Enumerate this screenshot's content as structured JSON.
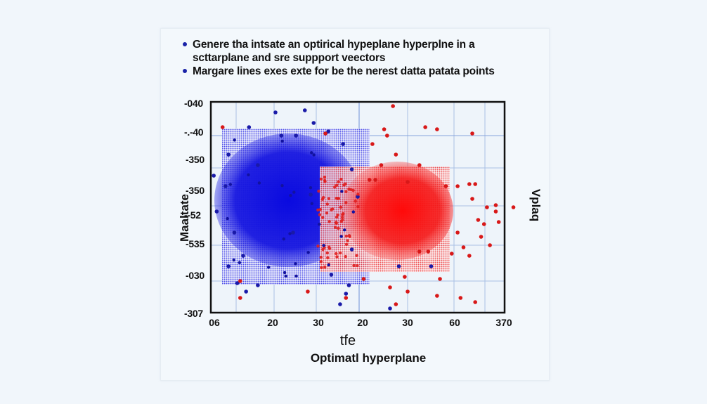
{
  "bullets": [
    "Genere tha intsate an optirical hypeplane hyperplne in a scttarplane and sre suppport veectors",
    "Margare lines  exes exte for be the nerest datta patata points"
  ],
  "colors": {
    "background": "#f1f6fb",
    "plot_bg": "#eef4fa",
    "class_a": "#1414d8",
    "class_b": "#e81414",
    "grid": "#9fb8e0",
    "frame": "#111111"
  },
  "chart_data": {
    "type": "scatter",
    "title": "Optimatl hyperplane",
    "xlabel": "tfe",
    "ylabel": "Maaltate",
    "right_label": "Vplaq",
    "x_ticks": [
      "06",
      "20",
      "30",
      "20",
      "30",
      "60",
      "370"
    ],
    "y_ticks": [
      "-040",
      "-.-40",
      "-350",
      "-350",
      "--52",
      "-535",
      "-030",
      "-307"
    ],
    "grid": true,
    "legend": null,
    "series": [
      {
        "name": "class_a (blue)",
        "color": "#1414d8",
        "density_region": {
          "x0": 0.04,
          "x1": 0.52,
          "y0": 0.13,
          "y1": 0.87
        },
        "points": [
          [
            0.22,
            0.05
          ],
          [
            0.29,
            0.16
          ],
          [
            0.32,
            0.04
          ],
          [
            0.35,
            0.1
          ],
          [
            0.01,
            0.35
          ],
          [
            0.02,
            0.52
          ],
          [
            0.05,
            0.4
          ],
          [
            0.06,
            0.25
          ],
          [
            0.08,
            0.62
          ],
          [
            0.11,
            0.73
          ],
          [
            0.13,
            0.12
          ],
          [
            0.16,
            0.3
          ],
          [
            0.24,
            0.16
          ],
          [
            0.28,
            0.62
          ],
          [
            0.34,
            0.44
          ],
          [
            0.4,
            0.14
          ],
          [
            0.45,
            0.2
          ],
          [
            0.48,
            0.32
          ],
          [
            0.5,
            0.45
          ],
          [
            0.48,
            0.7
          ],
          [
            0.41,
            0.82
          ],
          [
            0.47,
            0.87
          ],
          [
            0.46,
            0.91
          ],
          [
            0.06,
            0.78
          ],
          [
            0.09,
            0.86
          ],
          [
            0.16,
            0.87
          ],
          [
            0.44,
            0.96
          ],
          [
            0.12,
            0.9
          ],
          [
            0.75,
            0.78
          ],
          [
            0.64,
            0.78
          ],
          [
            0.61,
            0.98
          ]
        ]
      },
      {
        "name": "class_b (red)",
        "color": "#e81414",
        "density_region": {
          "x0": 0.4,
          "x1": 0.82,
          "y0": 0.28,
          "y1": 0.78
        },
        "points": [
          [
            0.04,
            0.12
          ],
          [
            0.39,
            0.15
          ],
          [
            0.62,
            0.02
          ],
          [
            0.59,
            0.13
          ],
          [
            0.6,
            0.16
          ],
          [
            0.73,
            0.12
          ],
          [
            0.77,
            0.13
          ],
          [
            0.89,
            0.15
          ],
          [
            0.55,
            0.2
          ],
          [
            0.63,
            0.25
          ],
          [
            0.58,
            0.3
          ],
          [
            0.71,
            0.3
          ],
          [
            0.54,
            0.37
          ],
          [
            0.56,
            0.37
          ],
          [
            0.67,
            0.38
          ],
          [
            0.88,
            0.39
          ],
          [
            0.9,
            0.39
          ],
          [
            0.8,
            0.4
          ],
          [
            0.84,
            0.4
          ],
          [
            0.89,
            0.46
          ],
          [
            0.94,
            0.5
          ],
          [
            0.97,
            0.49
          ],
          [
            0.91,
            0.56
          ],
          [
            0.93,
            0.58
          ],
          [
            0.97,
            0.52
          ],
          [
            1.03,
            0.5
          ],
          [
            0.98,
            0.57
          ],
          [
            0.84,
            0.62
          ],
          [
            0.86,
            0.69
          ],
          [
            0.92,
            0.64
          ],
          [
            0.95,
            0.68
          ],
          [
            0.82,
            0.72
          ],
          [
            0.88,
            0.73
          ],
          [
            0.66,
            0.83
          ],
          [
            0.78,
            0.84
          ],
          [
            0.63,
            0.96
          ],
          [
            0.67,
            0.9
          ],
          [
            0.61,
            0.88
          ],
          [
            0.77,
            0.92
          ],
          [
            0.85,
            0.93
          ],
          [
            0.9,
            0.95
          ],
          [
            0.1,
            0.85
          ],
          [
            0.1,
            0.93
          ],
          [
            0.33,
            0.9
          ],
          [
            0.46,
            0.93
          ],
          [
            0.52,
            0.84
          ],
          [
            0.71,
            0.71
          ],
          [
            0.74,
            0.71
          ]
        ]
      }
    ]
  }
}
